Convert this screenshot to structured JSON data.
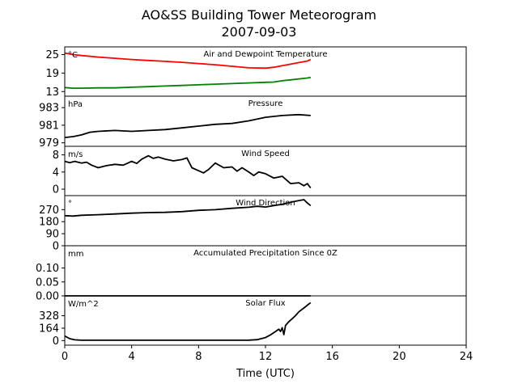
{
  "figure": {
    "title_line1": "AO&SS Building Tower Meteorogram",
    "title_line2": "2007-09-03",
    "xlabel": "Time (UTC)",
    "xlim": [
      0,
      24
    ],
    "xticks": [
      0,
      4,
      8,
      12,
      16,
      20,
      24
    ]
  },
  "chart_data": [
    {
      "type": "line",
      "title": "Air and Dewpoint Temperature",
      "unit": "°C",
      "ylim": [
        11.5,
        27.5
      ],
      "yticks": [
        13,
        19,
        25
      ],
      "series": [
        {
          "color": "#ff0000",
          "x": [
            0,
            0.5,
            1,
            2,
            3,
            4,
            5,
            6,
            7,
            8,
            9,
            10,
            11,
            12,
            12.5,
            13,
            13.5,
            14,
            14.5,
            14.7
          ],
          "y": [
            25.5,
            25,
            24.7,
            24.2,
            23.8,
            23.4,
            23.1,
            22.8,
            22.5,
            22.1,
            21.7,
            21.2,
            20.7,
            20.6,
            20.9,
            21.4,
            21.9,
            22.4,
            22.9,
            23.4
          ]
        },
        {
          "color": "#008000",
          "x": [
            0,
            0.5,
            1,
            2,
            3,
            4,
            5,
            6,
            7,
            8,
            9,
            10,
            11,
            12,
            12.5,
            13,
            13.5,
            14,
            14.5,
            14.7
          ],
          "y": [
            14.3,
            14.1,
            14.1,
            14.2,
            14.2,
            14.4,
            14.6,
            14.8,
            15,
            15.2,
            15.4,
            15.6,
            15.8,
            16,
            16.1,
            16.5,
            16.8,
            17.1,
            17.4,
            17.6
          ]
        }
      ]
    },
    {
      "type": "line",
      "title": "Pressure",
      "unit": "hPa",
      "ylim": [
        978.6,
        984.3
      ],
      "yticks": [
        979,
        981,
        983
      ],
      "series": [
        {
          "color": "#000000",
          "x": [
            0,
            0.5,
            1,
            1.5,
            2,
            3,
            4,
            5,
            6,
            7,
            8,
            9,
            10,
            11,
            12,
            13,
            14,
            14.7
          ],
          "y": [
            979.6,
            979.7,
            979.9,
            980.2,
            980.3,
            980.4,
            980.3,
            980.4,
            980.5,
            980.7,
            980.9,
            981.1,
            981.2,
            981.5,
            981.9,
            982.1,
            982.2,
            982.1
          ]
        }
      ]
    },
    {
      "type": "line",
      "title": "Wind Speed",
      "unit": "m/s",
      "ylim": [
        -1.5,
        10
      ],
      "yticks": [
        0,
        4,
        8
      ],
      "series": [
        {
          "color": "#000000",
          "x": [
            0,
            0.3,
            0.6,
            1,
            1.3,
            1.6,
            2,
            2.5,
            3,
            3.5,
            4,
            4.3,
            4.6,
            5,
            5.3,
            5.6,
            6,
            6.5,
            7,
            7.3,
            7.6,
            8,
            8.3,
            8.6,
            9,
            9.5,
            10,
            10.3,
            10.6,
            11,
            11.3,
            11.6,
            12,
            12.5,
            13,
            13.5,
            14,
            14.3,
            14.5,
            14.7
          ],
          "y": [
            6.5,
            6.2,
            6.5,
            6.1,
            6.3,
            5.6,
            5.0,
            5.5,
            5.8,
            5.6,
            6.5,
            6.0,
            7.0,
            7.8,
            7.2,
            7.5,
            7.0,
            6.6,
            6.9,
            7.3,
            5.0,
            4.3,
            3.8,
            4.6,
            6.1,
            5.0,
            5.2,
            4.2,
            5.0,
            4.0,
            3.2,
            4.0,
            3.6,
            2.6,
            3.0,
            1.3,
            1.5,
            0.8,
            1.3,
            0.3
          ]
        }
      ]
    },
    {
      "type": "line",
      "title": "Wind Direction",
      "unit": "°",
      "ylim": [
        0,
        375
      ],
      "yticks": [
        0,
        90,
        180,
        270
      ],
      "series": [
        {
          "color": "#000000",
          "x": [
            0,
            0.5,
            1,
            2,
            3,
            4,
            5,
            6,
            7,
            8,
            9,
            10,
            11,
            11.5,
            12,
            12.5,
            13,
            13.5,
            14,
            14.3,
            14.5,
            14.7
          ],
          "y": [
            225,
            222,
            228,
            232,
            238,
            244,
            248,
            250,
            255,
            265,
            270,
            280,
            288,
            295,
            290,
            300,
            310,
            325,
            338,
            345,
            320,
            300
          ]
        }
      ]
    },
    {
      "type": "line",
      "title": "Accumulated Precipitation Since 0Z",
      "unit": "mm",
      "ylim": [
        0,
        0.18
      ],
      "yticks": [
        0.0,
        0.05,
        0.1
      ],
      "ytick_labels": [
        "0.00",
        "0.05",
        "0.10"
      ],
      "series": [
        {
          "color": "#000000",
          "x": [
            0,
            14.7
          ],
          "y": [
            0,
            0
          ]
        }
      ]
    },
    {
      "type": "line",
      "title": "Solar Flux",
      "unit": "W/m^2",
      "ylim": [
        -60,
        590
      ],
      "yticks": [
        0,
        164,
        328
      ],
      "series": [
        {
          "color": "#000000",
          "x": [
            0,
            0.3,
            0.6,
            1,
            2,
            4,
            6,
            8,
            10,
            11,
            11.5,
            12,
            12.3,
            12.6,
            12.8,
            12.9,
            13.0,
            13.1,
            13.2,
            13.4,
            13.6,
            13.8,
            14,
            14.3,
            14.7
          ],
          "y": [
            60,
            25,
            10,
            5,
            5,
            5,
            5,
            5,
            5,
            6,
            12,
            40,
            75,
            120,
            150,
            120,
            170,
            80,
            200,
            250,
            290,
            330,
            380,
            430,
            500
          ]
        }
      ]
    }
  ]
}
